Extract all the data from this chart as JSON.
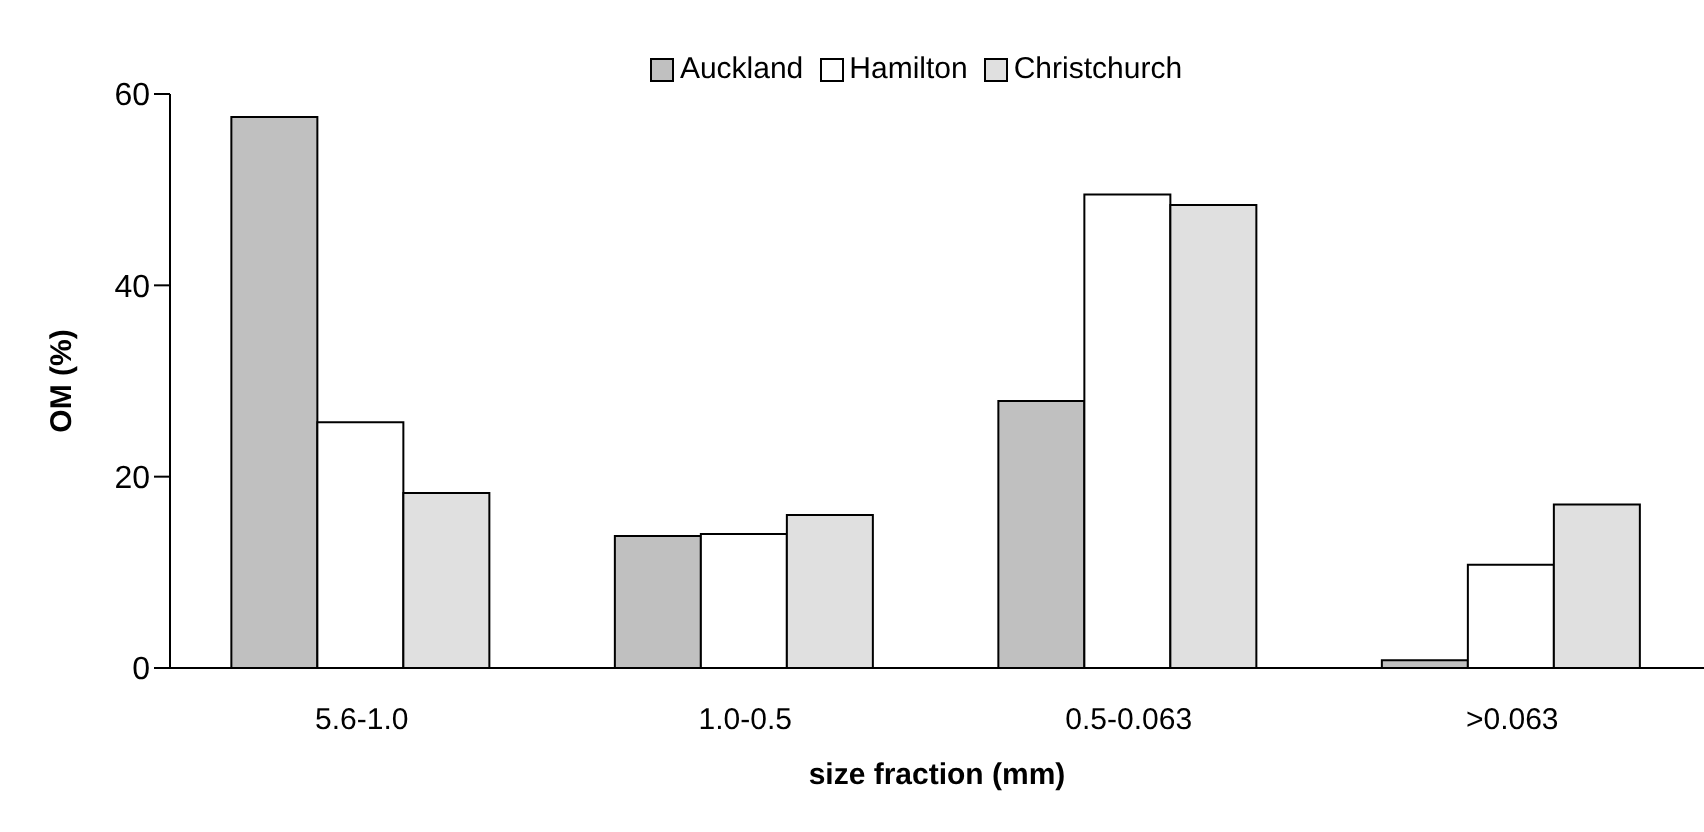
{
  "chart_data": {
    "type": "bar",
    "xlabel": "size fraction (mm)",
    "ylabel": "OM (%)",
    "categories": [
      "5.6-1.0",
      "1.0-0.5",
      "0.5-0.063",
      ">0.063"
    ],
    "series": [
      {
        "name": "Auckland",
        "color": "#c0c0c0",
        "values": [
          57.6,
          13.8,
          27.9,
          0.8
        ]
      },
      {
        "name": "Hamilton",
        "color": "#ffffff",
        "values": [
          25.7,
          14.0,
          49.5,
          10.8
        ]
      },
      {
        "name": "Christchurch",
        "color": "#e0e0e0",
        "values": [
          18.3,
          16.0,
          48.4,
          17.1
        ]
      }
    ],
    "ylim": [
      0,
      60
    ],
    "yticks": [
      0,
      20,
      40,
      60
    ],
    "grid": false,
    "legend": "top"
  }
}
